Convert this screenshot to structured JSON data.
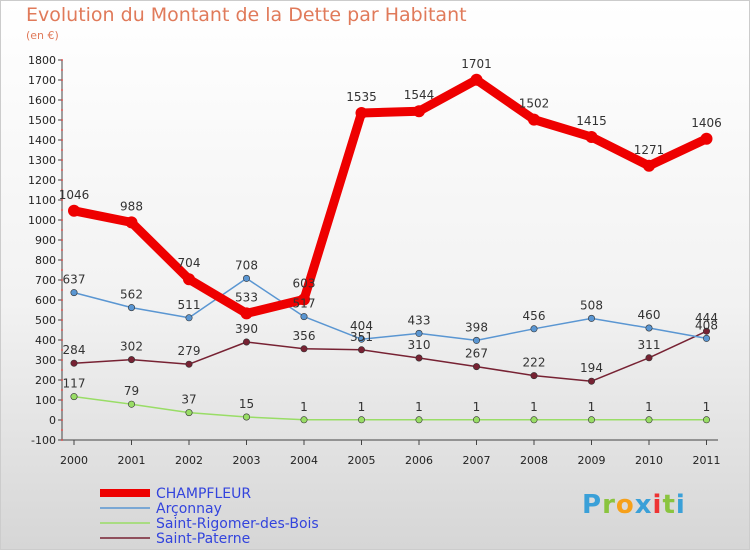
{
  "header": {
    "title": "Evolution du Montant de la Dette par Habitant",
    "subtitle": "(en €)"
  },
  "brand": {
    "letters": [
      "P",
      "r",
      "o",
      "x",
      "i",
      "t",
      "i"
    ],
    "colors": [
      "#3aa0d8",
      "#8ac43f",
      "#f6a01a",
      "#3aa0d8",
      "#e33",
      "#8ac43f",
      "#3aa0d8"
    ]
  },
  "chart_data": {
    "type": "line",
    "title": "Evolution du Montant de la Dette par Habitant",
    "ylabel": "(en €)",
    "xlabel": "",
    "x": [
      "2000",
      "2001",
      "2002",
      "2003",
      "2004",
      "2005",
      "2006",
      "2007",
      "2008",
      "2009",
      "2010",
      "2011"
    ],
    "ylim": [
      -100,
      1800
    ],
    "yticks": [
      -100,
      0,
      100,
      200,
      300,
      400,
      500,
      600,
      700,
      800,
      900,
      1000,
      1100,
      1200,
      1300,
      1400,
      1500,
      1600,
      1700,
      1800
    ],
    "grid": false,
    "legend": "bottom-left",
    "series": [
      {
        "name": "CHAMPFLEUR",
        "color": "#ee0000",
        "values": [
          1046,
          988,
          704,
          533,
          603,
          1535,
          1544,
          1701,
          1502,
          1415,
          1271,
          1406
        ],
        "labels": [
          "1046",
          "988",
          "704",
          "533",
          "603",
          "1535",
          "1544",
          "1701",
          "1502",
          "1415",
          "1271",
          "1406"
        ]
      },
      {
        "name": "Arçonnay",
        "color": "#5a96d2",
        "values": [
          637,
          562,
          511,
          708,
          517,
          404,
          433,
          398,
          456,
          508,
          460,
          408
        ],
        "labels": [
          "637",
          "562",
          "511",
          "708",
          "517",
          "404",
          "433",
          "398",
          "456",
          "508",
          "460",
          "408"
        ]
      },
      {
        "name": "Saint-Rigomer-des-Bois",
        "color": "#99dd66",
        "values": [
          117,
          79,
          37,
          15,
          1,
          1,
          1,
          1,
          1,
          1,
          1,
          1
        ],
        "labels": [
          "117",
          "79",
          "37",
          "15",
          "1",
          "1",
          "1",
          "1",
          "1",
          "1",
          "1",
          "1"
        ]
      },
      {
        "name": "Saint-Paterne",
        "color": "#772233",
        "values": [
          284,
          302,
          279,
          390,
          356,
          351,
          310,
          267,
          222,
          194,
          311,
          444
        ],
        "labels": [
          "284",
          "302",
          "279",
          "390",
          "356",
          "351",
          "310",
          "267",
          "222",
          "194",
          "311",
          "444"
        ]
      }
    ]
  }
}
